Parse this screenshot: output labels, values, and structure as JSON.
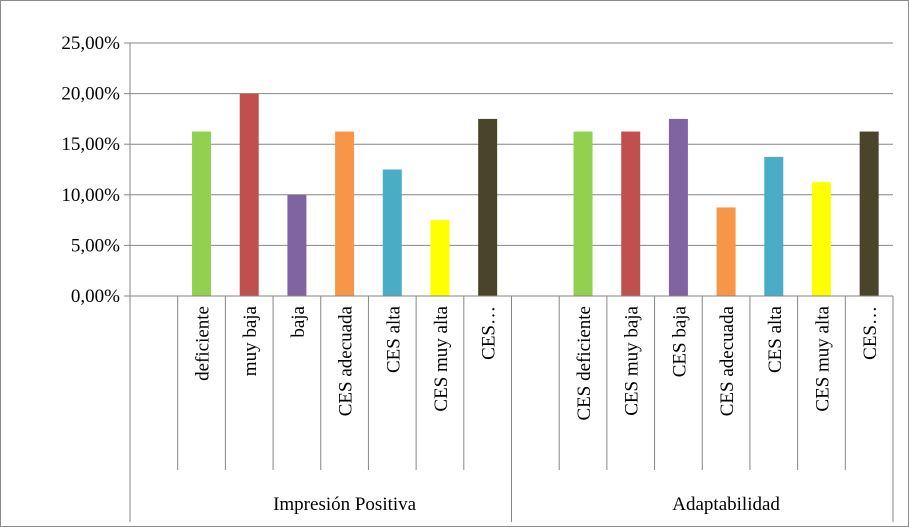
{
  "chart_data": {
    "type": "bar",
    "ylim": [
      0,
      25
    ],
    "y_ticks": [
      "0,00%",
      "5,00%",
      "10,00%",
      "15,00%",
      "20,00%",
      "25,00%"
    ],
    "grid": true,
    "groups": [
      {
        "name": "Impresión Positiva",
        "bars": [
          {
            "label": "deficiente",
            "value": 16.25,
            "color": "#92d050"
          },
          {
            "label": "muy baja",
            "value": 20.0,
            "color": "#c0504d"
          },
          {
            "label": "baja",
            "value": 10.0,
            "color": "#8064a2"
          },
          {
            "label": "CES adecuada",
            "value": 16.25,
            "color": "#f79646"
          },
          {
            "label": "CES alta",
            "value": 12.5,
            "color": "#4bacc6"
          },
          {
            "label": "CES muy alta",
            "value": 7.5,
            "color": "#ffff00"
          },
          {
            "label": "CES…",
            "value": 17.5,
            "color": "#4a452a"
          }
        ]
      },
      {
        "name": "Adaptabilidad",
        "bars": [
          {
            "label": "CES deficiente",
            "value": 16.25,
            "color": "#92d050"
          },
          {
            "label": "CES muy baja",
            "value": 16.25,
            "color": "#c0504d"
          },
          {
            "label": "CES baja",
            "value": 17.5,
            "color": "#8064a2"
          },
          {
            "label": "CES adecuada",
            "value": 8.75,
            "color": "#f79646"
          },
          {
            "label": "CES alta",
            "value": 13.75,
            "color": "#4bacc6"
          },
          {
            "label": "CES muy alta",
            "value": 11.25,
            "color": "#ffff00"
          },
          {
            "label": "CES…",
            "value": 16.25,
            "color": "#4a452a"
          }
        ]
      }
    ]
  }
}
